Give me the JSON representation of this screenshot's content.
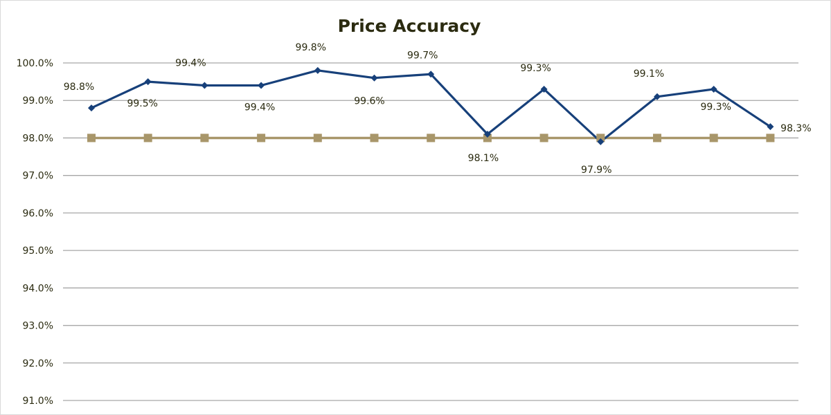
{
  "chart_data": {
    "type": "line",
    "title": "Price Accuracy",
    "xlabel": "",
    "ylabel": "",
    "ylim": [
      91.0,
      100.0
    ],
    "y_ticks": [
      "91.0%",
      "92.0%",
      "93.0%",
      "94.0%",
      "95.0%",
      "96.0%",
      "97.0%",
      "98.0%",
      "99.0%",
      "100.0%"
    ],
    "categories_count": 13,
    "grid": "horizontal",
    "legend": "none",
    "series": [
      {
        "values": [
          98.8,
          99.5,
          99.4,
          99.4,
          99.8,
          99.6,
          99.7,
          98.1,
          99.3,
          97.9,
          99.1,
          99.3,
          98.3
        ],
        "labels": [
          "98.8%",
          "99.5%",
          "99.4%",
          "99.4%",
          "99.8%",
          "99.6%",
          "99.7%",
          "98.1%",
          "99.3%",
          "97.9%",
          "99.1%",
          "99.3%",
          "98.3%"
        ],
        "color": "#17407a",
        "marker": "diamond"
      },
      {
        "values": [
          98.0,
          98.0,
          98.0,
          98.0,
          98.0,
          98.0,
          98.0,
          98.0,
          98.0,
          98.0,
          98.0,
          98.0,
          98.0
        ],
        "color": "#a8966a",
        "marker": "square"
      }
    ]
  }
}
